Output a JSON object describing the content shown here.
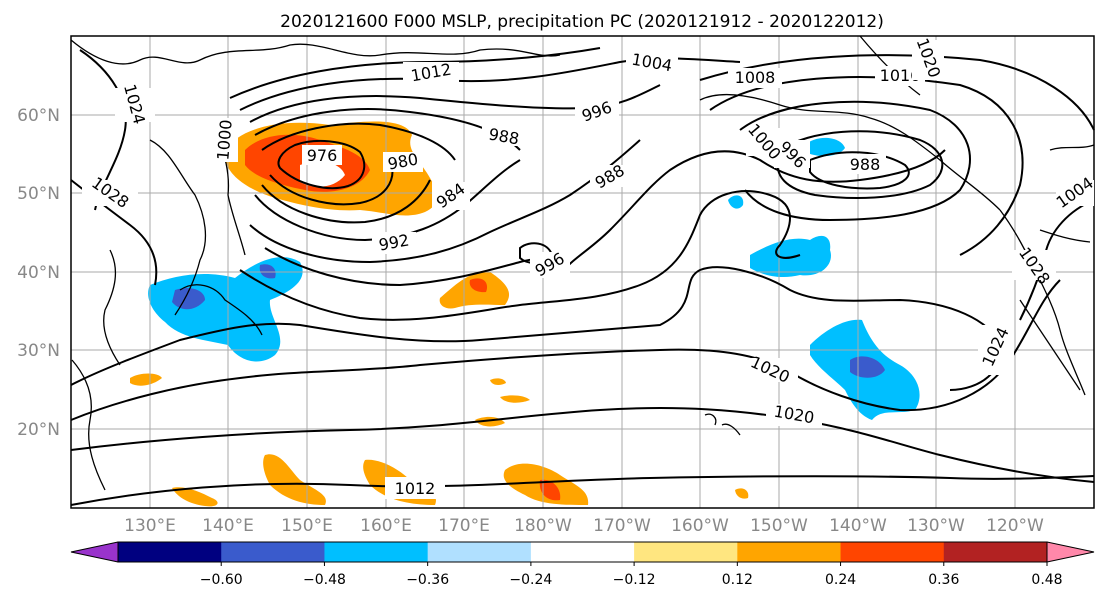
{
  "title": "2020121600 F000 MSLP, precipitation PC (2020121912 - 2020122012)",
  "map": {
    "lat_labels": [
      "60°N",
      "50°N",
      "40°N",
      "30°N",
      "20°N"
    ],
    "lon_labels": [
      "130°E",
      "140°E",
      "150°E",
      "160°E",
      "170°E",
      "180°W",
      "170°W",
      "160°W",
      "150°W",
      "140°W",
      "130°W",
      "120°W"
    ],
    "isobar_labels": [
      "1012",
      "1004",
      "1008",
      "1016",
      "1024",
      "1028",
      "1020",
      "1024",
      "1028",
      "996",
      "988",
      "976",
      "980",
      "988",
      "984",
      "992",
      "996",
      "988",
      "996",
      "1000",
      "1024",
      "1020",
      "1016",
      "1012",
      "1000",
      "1004",
      "1020"
    ]
  },
  "colorbar": {
    "ticks": [
      "−0.60",
      "−0.48",
      "−0.36",
      "−0.24",
      "−0.12",
      "0.12",
      "0.24",
      "0.36",
      "0.48",
      "0.60"
    ],
    "colors": [
      "#9933cc",
      "#000080",
      "#3a5bcc",
      "#00bfff",
      "#b0e0ff",
      "#ffffff",
      "#ffe680",
      "#ffa500",
      "#ff4500",
      "#b22222",
      "#ff88aa"
    ]
  },
  "colors": {
    "orange": "#ffa500",
    "dark_orange": "#ff4500",
    "light_yellow": "#ffe680",
    "sky_blue": "#00bfff",
    "royal_blue": "#3a5bcc",
    "light_blue": "#b0e0ff"
  }
}
